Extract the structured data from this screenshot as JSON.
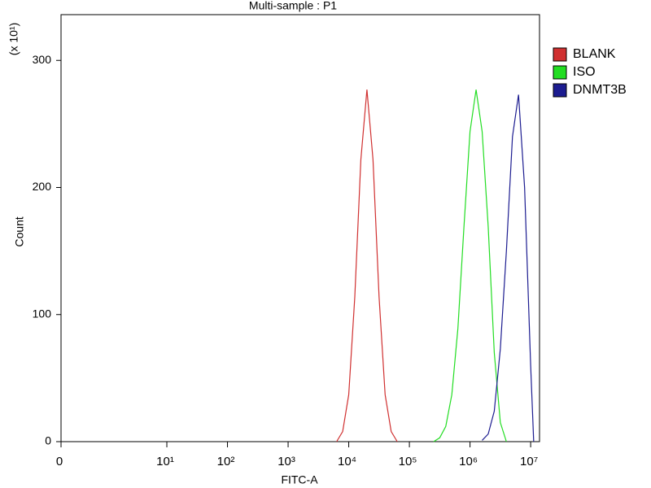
{
  "chart_data": {
    "type": "line",
    "title": "Multi-sample : P1",
    "xlabel": "FITC-A",
    "ylabel": "Count",
    "y_multiplier": "(x 10¹)",
    "xscale": "biexponential",
    "xlim": [
      0,
      14000000
    ],
    "xticks": [
      0,
      {
        "value": 10,
        "label": "10¹"
      },
      {
        "value": 100,
        "label": "10²"
      },
      {
        "value": 1000,
        "label": "10³"
      },
      {
        "value": 10000,
        "label": "10⁴"
      },
      {
        "value": 100000,
        "label": "10⁵"
      },
      {
        "value": 1000000,
        "label": "10⁶"
      },
      {
        "value": 10000000,
        "label": "10⁷"
      }
    ],
    "ylim": [
      0,
      336
    ],
    "yticks": [
      0,
      100,
      200,
      300
    ],
    "legend": "right",
    "series": [
      {
        "name": "BLANK",
        "color": "#d03030",
        "x": [
          6310,
          7943,
          10000,
          12589,
          15849,
          19953,
          25119,
          31623,
          39811,
          50119,
          63096
        ],
        "values": [
          0,
          8,
          37,
          114,
          222,
          277,
          222,
          114,
          37,
          8,
          0
        ]
      },
      {
        "name": "ISO",
        "color": "#22dd22",
        "x": [
          251189,
          316228,
          398107,
          501187,
          630957,
          794328,
          1000000,
          1258925,
          1584893,
          1995262,
          2511886,
          3162278,
          3981072
        ],
        "values": [
          0,
          3,
          12,
          37,
          89,
          169,
          244,
          277,
          244,
          169,
          70,
          15,
          0
        ]
      },
      {
        "name": "DNMT3B",
        "color": "#1c1c90",
        "x": [
          1584893,
          1995262,
          2511886,
          3162278,
          3981072,
          5011872,
          6309573,
          7943282,
          10000000,
          11220185
        ],
        "values": [
          1,
          6,
          24,
          73,
          150,
          240,
          273,
          200,
          60,
          0
        ]
      }
    ]
  }
}
